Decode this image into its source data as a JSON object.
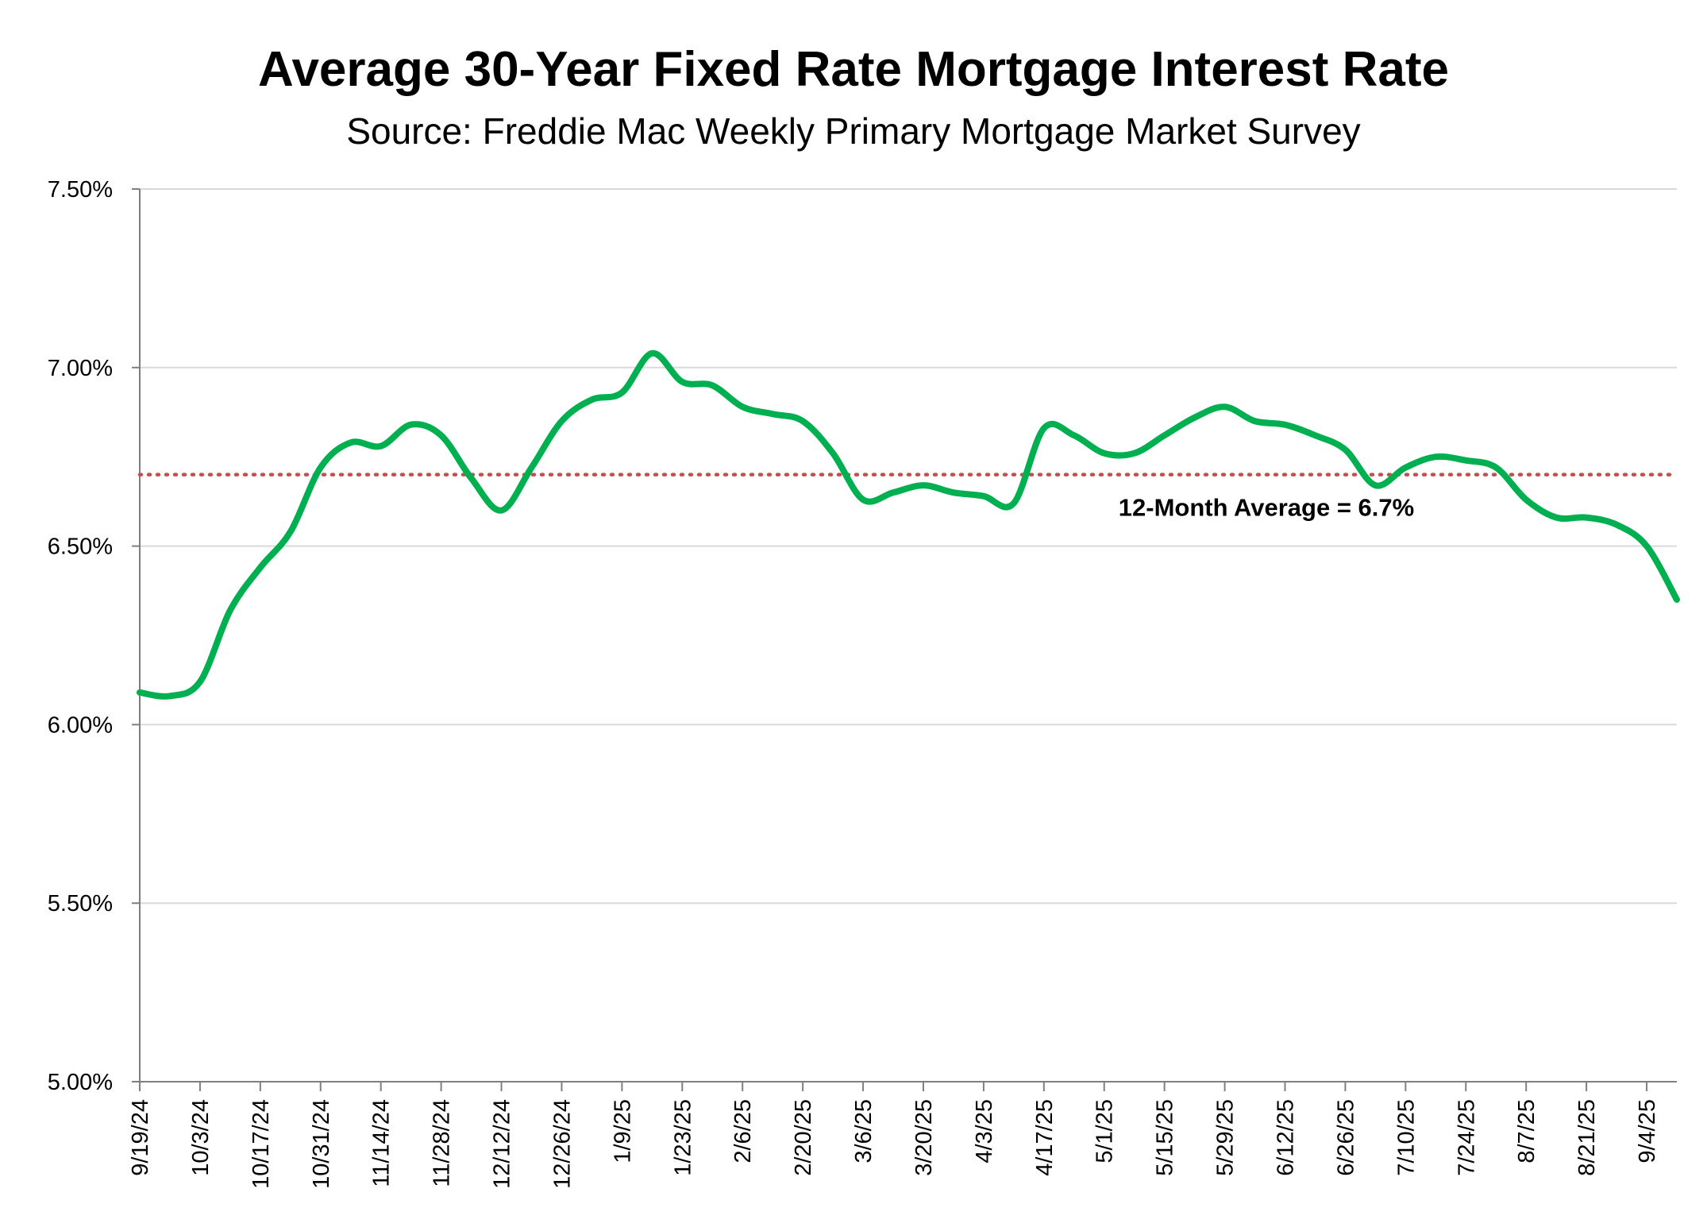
{
  "chart_data": {
    "type": "line",
    "title": "Average 30-Year Fixed Rate Mortgage Interest Rate",
    "subtitle": "Source: Freddie Mac Weekly Primary Mortgage Market Survey",
    "xlabel": "",
    "ylabel": "",
    "ylim": [
      5.0,
      7.5
    ],
    "yticks": [
      "5.00%",
      "5.50%",
      "6.00%",
      "6.50%",
      "7.00%",
      "7.50%"
    ],
    "ytick_values": [
      5.0,
      5.5,
      6.0,
      6.5,
      7.0,
      7.5
    ],
    "xtick_labels": [
      "9/19/24",
      "10/3/24",
      "10/17/24",
      "10/31/24",
      "11/14/24",
      "11/28/24",
      "12/12/24",
      "12/26/24",
      "1/9/25",
      "1/23/25",
      "2/6/25",
      "2/20/25",
      "3/6/25",
      "3/20/25",
      "4/3/25",
      "4/17/25",
      "5/1/25",
      "5/15/25",
      "5/29/25",
      "6/12/25",
      "6/26/25",
      "7/10/25",
      "7/24/25",
      "8/7/25",
      "8/21/25",
      "9/4/25"
    ],
    "grid": true,
    "series": [
      {
        "name": "",
        "color": "#00b050",
        "x": [
          "9/19/24",
          "9/26/24",
          "10/3/24",
          "10/10/24",
          "10/17/24",
          "10/24/24",
          "10/31/24",
          "11/7/24",
          "11/14/24",
          "11/21/24",
          "11/28/24",
          "12/5/24",
          "12/12/24",
          "12/19/24",
          "12/26/24",
          "1/2/25",
          "1/9/25",
          "1/16/25",
          "1/23/25",
          "1/30/25",
          "2/6/25",
          "2/13/25",
          "2/20/25",
          "2/27/25",
          "3/6/25",
          "3/13/25",
          "3/20/25",
          "3/27/25",
          "4/3/25",
          "4/10/25",
          "4/17/25",
          "4/24/25",
          "5/1/25",
          "5/8/25",
          "5/15/25",
          "5/22/25",
          "5/29/25",
          "6/5/25",
          "6/12/25",
          "6/19/25",
          "6/26/25",
          "7/3/25",
          "7/10/25",
          "7/17/25",
          "7/24/25",
          "7/31/25",
          "8/7/25",
          "8/14/25",
          "8/21/25",
          "8/28/25",
          "9/4/25",
          "9/11/25"
        ],
        "values": [
          6.09,
          6.08,
          6.12,
          6.32,
          6.44,
          6.54,
          6.72,
          6.79,
          6.78,
          6.84,
          6.81,
          6.69,
          6.6,
          6.72,
          6.85,
          6.91,
          6.93,
          7.04,
          6.96,
          6.95,
          6.89,
          6.87,
          6.85,
          6.76,
          6.63,
          6.65,
          6.67,
          6.65,
          6.64,
          6.62,
          6.83,
          6.81,
          6.76,
          6.76,
          6.81,
          6.86,
          6.89,
          6.85,
          6.84,
          6.81,
          6.77,
          6.67,
          6.72,
          6.75,
          6.74,
          6.72,
          6.63,
          6.58,
          6.58,
          6.56,
          6.5,
          6.35
        ]
      }
    ],
    "reference_line": {
      "value": 6.7,
      "color": "#c0504d",
      "label": "12-Month Average = 6.7%"
    }
  }
}
